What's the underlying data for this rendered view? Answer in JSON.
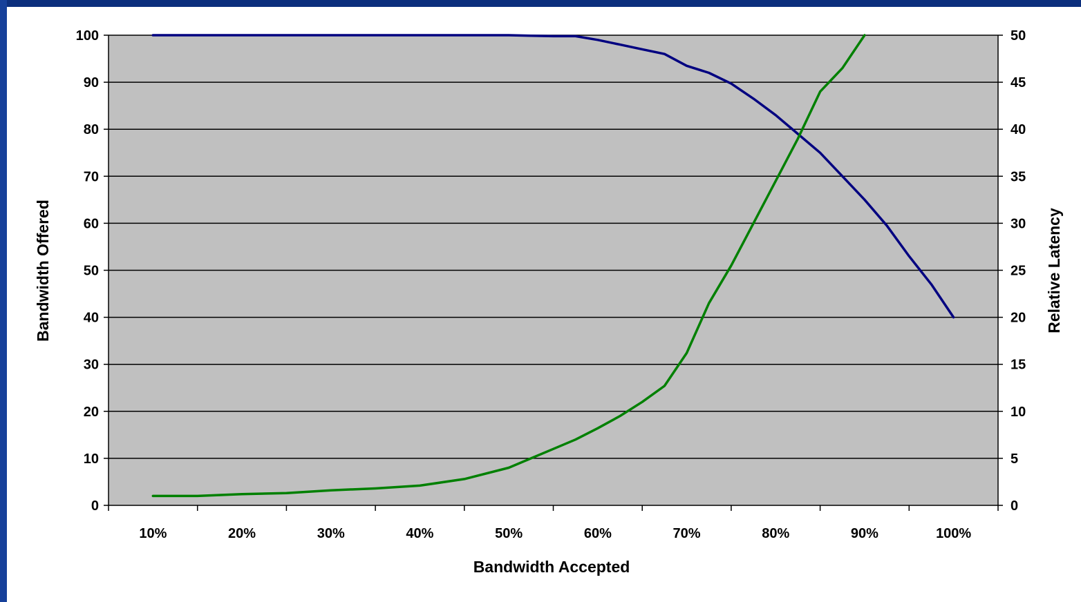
{
  "frame": {
    "top_color": "#0c2f7d",
    "left_color": "#16409a"
  },
  "chart_data": {
    "type": "line",
    "x_axis": {
      "label": "Bandwidth Accepted",
      "categories": [
        "10%",
        "20%",
        "30%",
        "40%",
        "50%",
        "60%",
        "70%",
        "80%",
        "90%",
        "100%"
      ]
    },
    "y_axis_left": {
      "label": "Bandwidth Offered",
      "ylim": [
        0,
        100
      ],
      "ticks": [
        "0",
        "10",
        "20",
        "30",
        "40",
        "50",
        "60",
        "70",
        "80",
        "90",
        "100"
      ]
    },
    "y_axis_right": {
      "label": "Relative Latency",
      "ylim": [
        0,
        50
      ],
      "ticks": [
        "0",
        "5",
        "10",
        "15",
        "20",
        "25",
        "30",
        "35",
        "40",
        "45",
        "50"
      ]
    },
    "grid": true,
    "plot_background": "#c0c0c0",
    "series": [
      {
        "color": "#000080",
        "axis": "left",
        "x": [
          10,
          15,
          20,
          25,
          30,
          35,
          40,
          45,
          50,
          55,
          57.5,
          60,
          62.5,
          65,
          67.5,
          70,
          72.5,
          75,
          77.5,
          80,
          82.5,
          85,
          87.5,
          90,
          92.5,
          95,
          97.5,
          100
        ],
        "y": [
          100,
          100,
          100,
          100,
          100,
          100,
          100,
          100,
          100,
          99.8,
          99.8,
          99,
          98,
          97,
          96,
          93.5,
          92,
          89.7,
          86.5,
          83,
          79,
          75,
          70,
          65,
          59.5,
          53,
          47,
          40
        ]
      },
      {
        "color": "#008000",
        "axis": "right",
        "x": [
          10,
          15,
          20,
          25,
          30,
          35,
          40,
          45,
          50,
          52.5,
          55,
          57.5,
          60,
          62.5,
          65,
          67.5,
          70,
          72.5,
          75,
          77.5,
          80,
          82.5,
          85,
          87.5,
          90
        ],
        "y": [
          1,
          1,
          1.2,
          1.3,
          1.6,
          1.8,
          2.1,
          2.8,
          4.0,
          5.0,
          6.0,
          7.0,
          8.2,
          9.5,
          11,
          12.7,
          16.2,
          21.5,
          25.5,
          30,
          34.5,
          39,
          44,
          46.5,
          50
        ]
      }
    ]
  }
}
